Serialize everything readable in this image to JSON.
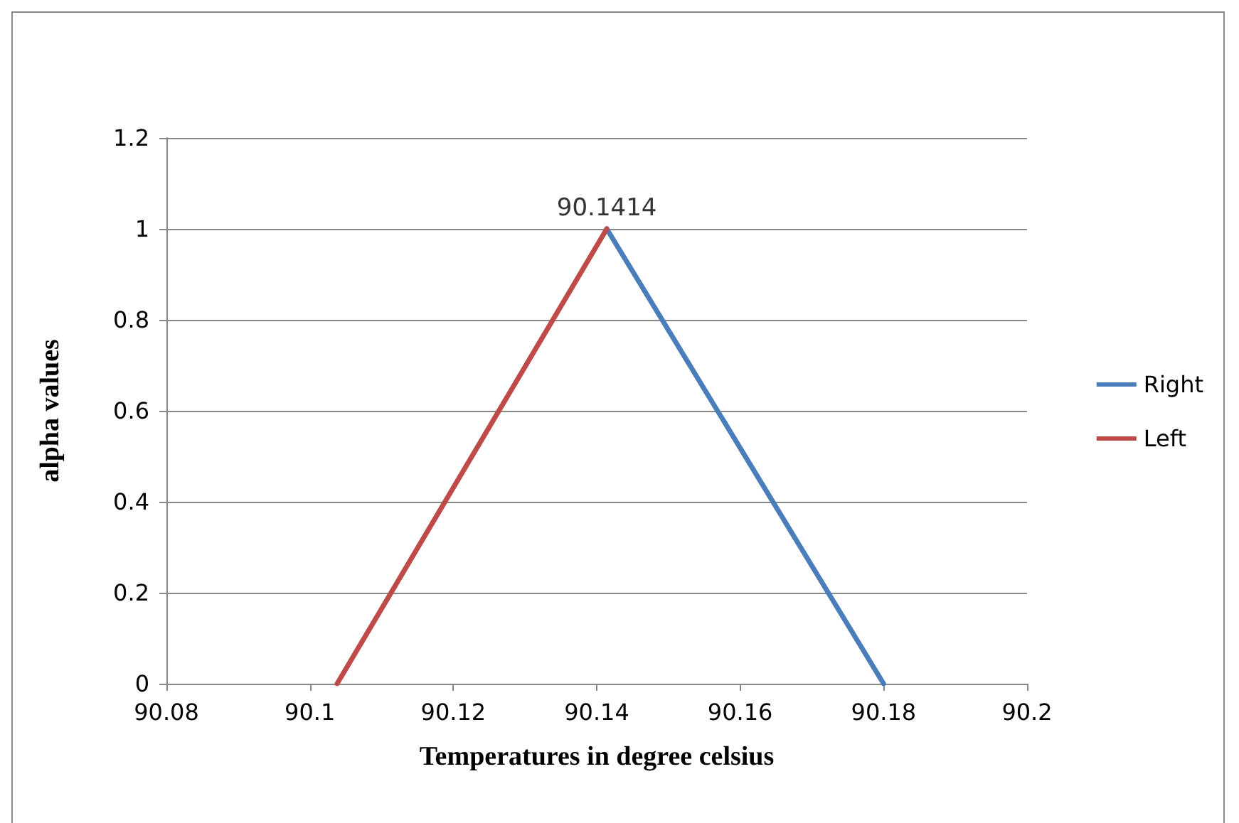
{
  "chart_data": {
    "type": "line",
    "xlabel": "Temperatures in degree celsius",
    "ylabel": "alpha values",
    "xlim": [
      90.08,
      90.2
    ],
    "xticks": [
      90.08,
      90.1,
      90.12,
      90.14,
      90.16,
      90.18,
      90.2
    ],
    "ylim": [
      0,
      1.2
    ],
    "yticks": [
      0,
      0.2,
      0.4,
      0.6,
      0.8,
      1,
      1.2
    ],
    "grid": "y",
    "legend": "right",
    "marker": "none",
    "line_style": "solid",
    "series": [
      {
        "name": "Right",
        "color": "#4a7ebb",
        "x": [
          90.1414,
          90.18
        ],
        "values": [
          1,
          0
        ]
      },
      {
        "name": "Left",
        "color": "#be4b48",
        "x": [
          90.1038,
          90.1414
        ],
        "values": [
          0,
          1
        ]
      }
    ],
    "annotations": [
      {
        "text": "90.1414",
        "x": 90.1414,
        "y": 1
      }
    ]
  }
}
